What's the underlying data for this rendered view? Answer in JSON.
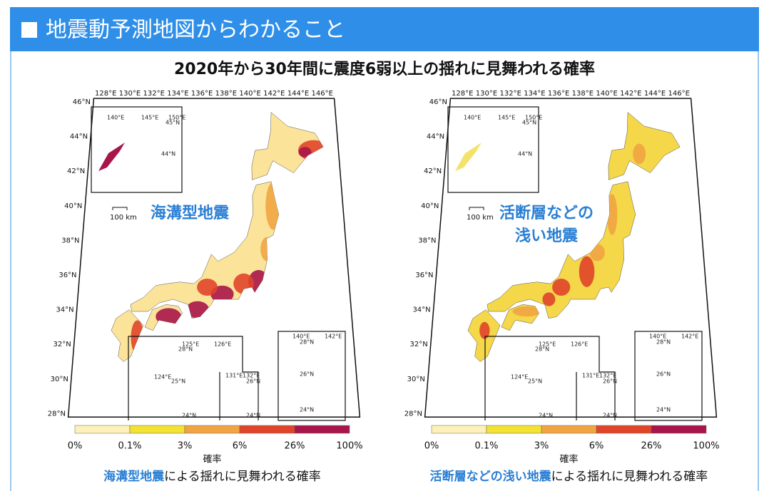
{
  "header": {
    "title": "地震動予測地図からわかること"
  },
  "subtitle": "2020年から30年間に震度6弱以上の揺れに見舞われる確率",
  "maps": [
    {
      "label": [
        "海溝型地震"
      ],
      "longitudes": [
        "128°E",
        "130°E",
        "132°E",
        "134°E",
        "136°E",
        "138°E",
        "140°E",
        "142°E",
        "144°E",
        "146°E"
      ],
      "latitudes": [
        "46°N",
        "44°N",
        "42°N",
        "40°N",
        "38°N",
        "36°N",
        "34°N",
        "32°N",
        "30°N",
        "28°N"
      ],
      "scale": "100 km",
      "inset_labels": [
        "140°E",
        "145°E",
        "150°E",
        "45°N",
        "44°N",
        "125°E",
        "126°E",
        "28°N",
        "124°E",
        "25°N",
        "24°N",
        "131°E",
        "132°E",
        "26°N",
        "24°N",
        "140°E",
        "142°E",
        "28°N",
        "26°N",
        "24°N"
      ],
      "legend": {
        "labels": [
          "0%",
          "0.1%",
          "3%",
          "6%",
          "26%",
          "100%"
        ],
        "title": "確率"
      },
      "caption": {
        "highlight": "海溝型地震",
        "rest": "による揺れに見舞われる確率"
      }
    },
    {
      "label": [
        "活断層などの",
        "浅い地震"
      ],
      "longitudes": [
        "128°E",
        "130°E",
        "132°E",
        "134°E",
        "136°E",
        "138°E",
        "140°E",
        "142°E",
        "144°E",
        "146°E"
      ],
      "latitudes": [
        "46°N",
        "44°N",
        "42°N",
        "40°N",
        "38°N",
        "36°N",
        "34°N",
        "32°N",
        "30°N",
        "28°N"
      ],
      "scale": "100 km",
      "inset_labels": [
        "140°E",
        "145°E",
        "150°E",
        "45°N",
        "44°N",
        "125°E",
        "126°E",
        "28°N",
        "124°E",
        "25°N",
        "24°N",
        "131°E",
        "132°E",
        "26°N",
        "24°N",
        "140°E",
        "142°E",
        "28°N",
        "26°N",
        "24°N"
      ],
      "legend": {
        "labels": [
          "0%",
          "0.1%",
          "3%",
          "6%",
          "26%",
          "100%"
        ],
        "title": "確率"
      },
      "caption": {
        "highlight": "活断層などの浅い地震",
        "rest": "による揺れに見舞われる確率"
      }
    }
  ]
}
